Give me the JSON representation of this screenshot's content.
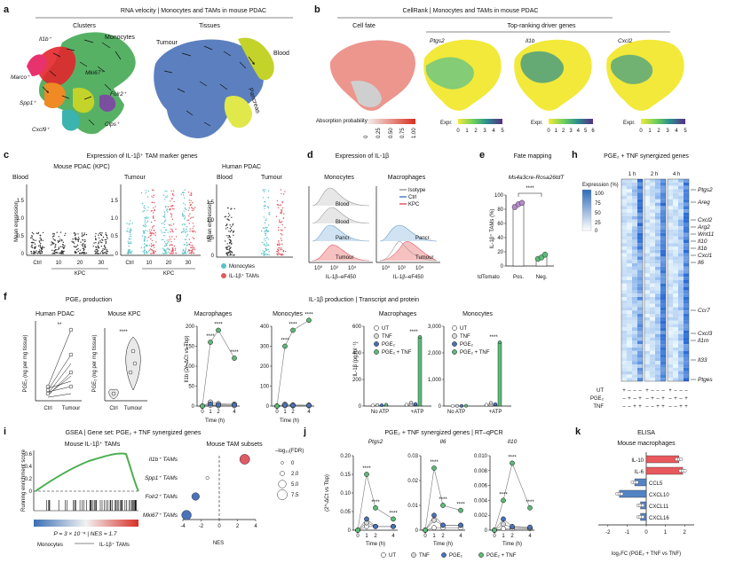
{
  "colors": {
    "orange": "#f08a24",
    "red": "#e3262b",
    "pink": "#e8326e",
    "purple": "#7a4fa0",
    "green": "#3aa34a",
    "lime": "#c4d32a",
    "blue": "#4a72b8",
    "teal": "#3bb3ae",
    "mono_teal": "#59c2c7",
    "tam_red": "#e05a63",
    "heat_blue": "#2d6cb8",
    "isotype": "#9a9a9a",
    "ctrl_blue": "#9fc6e6",
    "kpc_red": "#f08c8c",
    "bar_red": "#e8585c",
    "bar_blue": "#5383c4"
  },
  "panels": {
    "a": {
      "label": "a",
      "title": "RNA velocity | Monocytes and TAMs in mouse PDAC",
      "clusters_title": "Clusters",
      "tissues_title": "Tissues",
      "cluster_labels": [
        "Il1b⁺",
        "Monocytes",
        "Mki67⁺",
        "Marco⁺",
        "Folr2⁺",
        "Spp1⁺",
        "Clps⁺",
        "Cxcl9⁺"
      ],
      "tissue_labels": [
        "Tumour",
        "Blood",
        "Pancreas"
      ]
    },
    "b": {
      "label": "b",
      "title": "CellRank | Monocytes and TAMs in mouse PDAC",
      "subtitle": "Top-ranking driver genes",
      "cell_fate": "Cell fate",
      "genes": [
        "Ptgs2",
        "Il1b",
        "Cxcl2"
      ],
      "absorption_label": "Absorption probability",
      "absorption_ticks": [
        "0",
        "0.25",
        "0.50",
        "0.75",
        "1.00"
      ],
      "expr_label": "Expr.",
      "expr_ticks": [
        [
          "0",
          "1",
          "2",
          "3",
          "4",
          "5"
        ],
        [
          "0",
          "1",
          "2",
          "3",
          "4",
          "5",
          "6"
        ],
        [
          "0",
          "1",
          "2",
          "3",
          "4",
          "5"
        ]
      ]
    },
    "c": {
      "label": "c",
      "title": "Expression of IL-1β⁺ TAM marker genes",
      "mouse_title": "Mouse PDAC (KPC)",
      "human_title": "Human PDAC",
      "blood": "Blood",
      "tumour": "Tumour",
      "ylabel": "Mean expression",
      "ctrl": "Ctrl",
      "kpc": "KPC",
      "weeks": [
        "10",
        "20",
        "30"
      ],
      "yticks_blood": [
        "0",
        "0.5",
        "1.0",
        "1.5"
      ],
      "yticks_tumour": [
        "0",
        "0.5",
        "1.0",
        "1.5"
      ],
      "yticks_human": [
        "0",
        "0.5",
        "1.0",
        "1.5"
      ],
      "legend": [
        "Monocytes",
        "IL-1β⁺ TAMs"
      ]
    },
    "d": {
      "label": "d",
      "title": "Expression of IL-1β",
      "mono": "Monocytes",
      "macro": "Macrophages",
      "rows_mono": [
        "Blood",
        "Blood",
        "Pancr.",
        "Tumour"
      ],
      "rows_macro": [
        "Pancr.",
        "Tumour"
      ],
      "legend": [
        "Isotype",
        "Ctrl",
        "KPC"
      ],
      "xlabel": "IL-1β–eF450",
      "xticks": [
        "10⁰",
        "10²",
        "10³",
        "10⁴"
      ]
    },
    "e": {
      "label": "e",
      "title": "Fate mapping",
      "strain": "Ms4a3cre-Rosa26tdT",
      "ylabel": "IL-1β⁺ TAMs (%)",
      "yticks": [
        "0",
        "20",
        "40",
        "60",
        "80",
        "100"
      ],
      "xcats": [
        "Pos.",
        "Neg."
      ],
      "xaxis": "tdTomato",
      "sig": "****",
      "values": {
        "pos": [
          83,
          87,
          89
        ],
        "neg": [
          10,
          12,
          16
        ]
      }
    },
    "f": {
      "label": "f",
      "title": "PGE₂ production",
      "human": "Human PDAC",
      "mouse": "Mouse KPC",
      "ylabel": "PGE₂ (ng per mg tissue)",
      "ylabel_mouse": "PGE₂ (ng per mg tissue)",
      "yticks_h": [
        "0",
        "0.5",
        "1.0",
        "1.5",
        "2.0"
      ],
      "yticks_m": [
        "0",
        "0.5",
        "1.0",
        "1.5"
      ],
      "cats_h": [
        "Ctrl",
        "Tumour"
      ],
      "cats_m": [
        "Ctrl",
        "Tumour"
      ],
      "sig_h": "**",
      "sig_m": "****"
    },
    "g": {
      "label": "g",
      "title": "IL-1β production | Transcript and protein",
      "macro": "Macrophages",
      "mono": "Monocytes",
      "ylabel_rna": "Il1b (2^-ΔCt vs Tbp)",
      "ylabel_prot": "IL-1β (pg ml⁻¹)",
      "xlabel": "Time (h)",
      "xticks": [
        "0",
        "1",
        "2",
        "4"
      ],
      "yticks_m": [
        "0",
        "50",
        "100",
        "150",
        "200"
      ],
      "yticks_mo": [
        "0",
        "100",
        "200",
        "300",
        "400"
      ],
      "yticks_pm": [
        "0",
        "200",
        "400",
        "600"
      ],
      "yticks_pmo": [
        "0",
        "1,000",
        "2,000",
        "3,000"
      ],
      "cond": [
        "No ATP",
        "+ATP"
      ],
      "legend": [
        "UT",
        "TNF",
        "PGE₂",
        "PGE₂ + TNF"
      ],
      "sig": "****"
    },
    "h": {
      "label": "h",
      "title": "PGE₂ + TNF synergized genes",
      "expr": "Expression (%)",
      "scale": [
        "100",
        "75",
        "50",
        "25",
        "0"
      ],
      "times": [
        "1 h",
        "2 h",
        "4 h"
      ],
      "genes": [
        "Ptgs2",
        "Areg",
        "Cxcl2",
        "Arg2",
        "Wnt11",
        "Il10",
        "Il1b",
        "Cxcl1",
        "Il6",
        "Ccr7",
        "Cxcl3",
        "Il1rn",
        "Il33",
        "Ptges"
      ],
      "ut": "UT",
      "pge2": "PGE₂",
      "tnf": "TNF",
      "signs_ut": [
        "+",
        "–",
        "–",
        "–"
      ],
      "signs_pge2": [
        "–",
        "+",
        "–",
        "+"
      ],
      "signs_tnf": [
        "–",
        "–",
        "+",
        "+"
      ]
    },
    "i": {
      "label": "i",
      "title": "GSEA | Gene set: PGE₂ + TNF synergized genes",
      "left_title": "Mouse IL-1β⁺ TAMs",
      "ylabel": "Running enrichment score",
      "yticks": [
        "0",
        "0.2",
        "0.4",
        "0.6"
      ],
      "stats": "P = 3 × 10⁻⁴ | NES = 1.7",
      "axis_left": "Monocytes",
      "axis_right": "IL-1β⁺ TAMs",
      "right_title": "Mouse TAM subsets",
      "subsets": [
        "Il1b⁺ TAMs",
        "Spp1⁺ TAMs",
        "Folr2⁺ TAMs",
        "Mki67⁺ TAMs"
      ],
      "nes": [
        2.8,
        -1.3,
        -2.6,
        -3.6
      ],
      "fdr": [
        7.5,
        0.5,
        5.0,
        7.0
      ],
      "xlabel": "NES",
      "xticks": [
        "-4",
        "-2",
        "0",
        "2",
        "4"
      ],
      "size_title": "–log₁₀(FDR)",
      "size_ticks": [
        "0",
        "2.0",
        "5.0",
        "7.5"
      ]
    },
    "j": {
      "label": "j",
      "title": "PGE₂ + TNF synergized genes | RT–qPCR",
      "genes": [
        "Ptgs2",
        "Il6",
        "Il10"
      ],
      "ylabel": "(2^-ΔCt vs Tbp)",
      "xlabel": "Time (h)",
      "xticks": [
        "0",
        "1",
        "2",
        "4"
      ],
      "yticks": [
        [
          "0",
          "0.05",
          "0.10",
          "0.15",
          "0.20"
        ],
        [
          "0",
          "0.01",
          "0.02",
          "0.03"
        ],
        [
          "0",
          "0.002",
          "0.004",
          "0.006",
          "0.008",
          "0.010"
        ]
      ],
      "legend": [
        "UT",
        "TNF",
        "PGE₂",
        "PGE₂ + TNF"
      ],
      "sig": "****"
    },
    "k": {
      "label": "k",
      "title": "ELISA",
      "subtitle": "Mouse macrophages",
      "cats": [
        "IL-10",
        "IL-6",
        "CCL5",
        "CXCL10",
        "CXCL11",
        "CXCL16"
      ],
      "values": [
        1.7,
        1.9,
        -0.6,
        -1.4,
        -0.3,
        -0.3
      ],
      "xticks": [
        "-2",
        "-1",
        "0",
        "1",
        "2"
      ],
      "xlabel": "log₂FC (PGE₂ + TNF vs TNF)"
    }
  }
}
